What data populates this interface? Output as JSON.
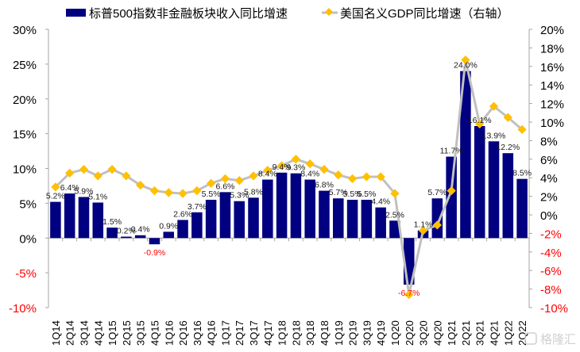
{
  "chart_data": {
    "type": "bar+line",
    "title": "",
    "categories": [
      "1Q14",
      "2Q14",
      "3Q14",
      "4Q14",
      "1Q15",
      "2Q15",
      "3Q15",
      "4Q15",
      "1Q16",
      "2Q16",
      "3Q16",
      "4Q16",
      "1Q17",
      "2Q17",
      "3Q17",
      "4Q17",
      "1Q18",
      "2Q18",
      "3Q18",
      "4Q18",
      "1Q19",
      "2Q19",
      "3Q19",
      "4Q19",
      "1Q20",
      "2Q20",
      "3Q20",
      "4Q20",
      "1Q21",
      "2Q21",
      "3Q21",
      "4Q21",
      "1Q22",
      "2Q22"
    ],
    "series": [
      {
        "name": "标普500指数非金融板块收入同比增速",
        "type": "bar",
        "axis": "left",
        "color": "#000080",
        "values": [
          5.2,
          6.4,
          5.9,
          5.1,
          1.5,
          0.2,
          0.4,
          -0.9,
          0.9,
          2.6,
          3.7,
          5.5,
          6.6,
          5.3,
          5.8,
          8.4,
          9.4,
          9.3,
          8.4,
          6.8,
          5.7,
          5.5,
          5.5,
          4.4,
          2.5,
          -6.7,
          1.1,
          5.7,
          11.7,
          24.0,
          16.1,
          13.9,
          12.2,
          8.5
        ],
        "labels": [
          "5.2%",
          "6.4%",
          "5.9%",
          "5.1%",
          "1.5%",
          "0.2%",
          "0.4%",
          "-0.9%",
          "0.9%",
          "2.6%",
          "3.7%",
          "5.5%",
          "6.6%",
          "5.3%",
          "5.8%",
          "8.4%",
          "9.4%",
          "9.3%",
          "8.4%",
          "6.8%",
          "5.7%",
          "5.5%",
          "5.5%",
          "4.4%",
          "2.5%",
          "-6.7%",
          "1.1%",
          "5.7%",
          "11.7%",
          "24.0%",
          "16.1%",
          "13.9%",
          "12.2%",
          "8.5%"
        ]
      },
      {
        "name": "美国名义GDP同比增速（右轴）",
        "type": "line",
        "axis": "right",
        "color": "#ffc000",
        "line_color": "#c0c0c0",
        "values": [
          3.0,
          4.5,
          4.9,
          4.2,
          4.9,
          4.2,
          3.2,
          2.6,
          2.4,
          2.3,
          2.6,
          3.4,
          3.9,
          3.7,
          4.2,
          4.8,
          5.3,
          6.0,
          5.5,
          4.9,
          4.3,
          3.9,
          4.1,
          4.1,
          2.3,
          -8.6,
          -1.7,
          -1.1,
          2.6,
          16.7,
          9.8,
          11.7,
          10.5,
          9.2
        ]
      }
    ],
    "left_axis": {
      "ylim": [
        -10,
        30
      ],
      "ticks": [
        "30%",
        "25%",
        "20%",
        "15%",
        "10%",
        "5%",
        "0%",
        "-5%",
        "-10%"
      ],
      "tick_values": [
        30,
        25,
        20,
        15,
        10,
        5,
        0,
        -5,
        -10
      ]
    },
    "right_axis": {
      "ylim": [
        -10,
        20
      ],
      "ticks": [
        "20%",
        "18%",
        "16%",
        "14%",
        "12%",
        "10%",
        "8%",
        "6%",
        "4%",
        "2%",
        "0%",
        "-2%",
        "-4%",
        "-6%",
        "-8%",
        "-10%"
      ],
      "tick_values": [
        20,
        18,
        16,
        14,
        12,
        10,
        8,
        6,
        4,
        2,
        0,
        -2,
        -4,
        -6,
        -8,
        -10
      ]
    },
    "negative_color": "#ff0000",
    "legend": {
      "placement": "top",
      "items": [
        "标普500指数非金融板块收入同比增速",
        "美国名义GDP同比增速（右轴）"
      ]
    },
    "grid": false
  },
  "watermark": "格隆汇"
}
